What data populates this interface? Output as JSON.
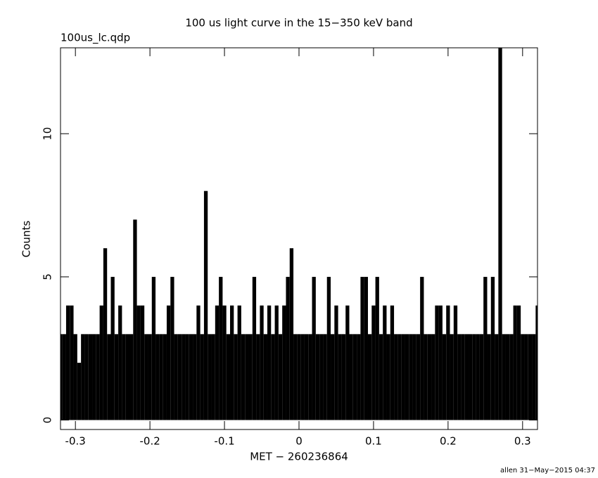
{
  "chart_data": {
    "type": "histogram-spikes",
    "title": "100 us light curve in the 15−350 keV band",
    "subtitle": "100us_lc.qdp",
    "x_label": "MET − 260236864",
    "y_label": "Counts",
    "footer": "allen 31−May−2015 04:37",
    "color": "#000000",
    "x": [
      -0.32,
      -0.315,
      -0.31,
      -0.305,
      -0.3,
      -0.295,
      -0.29,
      -0.285,
      -0.28,
      -0.275,
      -0.27,
      -0.265,
      -0.26,
      -0.255,
      -0.25,
      -0.245,
      -0.24,
      -0.235,
      -0.23,
      -0.225,
      -0.22,
      -0.215,
      -0.21,
      -0.205,
      -0.2,
      -0.195,
      -0.19,
      -0.185,
      -0.18,
      -0.175,
      -0.17,
      -0.165,
      -0.16,
      -0.155,
      -0.15,
      -0.145,
      -0.14,
      -0.135,
      -0.13,
      -0.125,
      -0.12,
      -0.115,
      -0.11,
      -0.105,
      -0.1,
      -0.095,
      -0.09,
      -0.085,
      -0.08,
      -0.075,
      -0.07,
      -0.065,
      -0.06,
      -0.055,
      -0.05,
      -0.045,
      -0.04,
      -0.035,
      -0.03,
      -0.025,
      -0.02,
      -0.015,
      -0.01,
      -0.005,
      0,
      0.005,
      0.01,
      0.015,
      0.02,
      0.025,
      0.03,
      0.035,
      0.04,
      0.045,
      0.05,
      0.055,
      0.06,
      0.065,
      0.07,
      0.075,
      0.08,
      0.085,
      0.09,
      0.095,
      0.1,
      0.105,
      0.11,
      0.115,
      0.12,
      0.125,
      0.13,
      0.135,
      0.14,
      0.145,
      0.15,
      0.155,
      0.16,
      0.165,
      0.17,
      0.175,
      0.18,
      0.185,
      0.19,
      0.195,
      0.2,
      0.205,
      0.21,
      0.215,
      0.22,
      0.225,
      0.23,
      0.235,
      0.24,
      0.245,
      0.25,
      0.255,
      0.26,
      0.265,
      0.27,
      0.275,
      0.28,
      0.285,
      0.29,
      0.295,
      0.3,
      0.305,
      0.31,
      0.315,
      0.32
    ],
    "values": [
      3,
      3,
      4,
      4,
      3,
      2,
      3,
      3,
      3,
      3,
      3,
      4,
      6,
      3,
      5,
      3,
      4,
      3,
      3,
      3,
      7,
      4,
      4,
      3,
      3,
      5,
      3,
      3,
      3,
      4,
      5,
      3,
      3,
      3,
      3,
      3,
      3,
      4,
      3,
      8,
      3,
      3,
      4,
      5,
      4,
      3,
      4,
      3,
      4,
      3,
      3,
      3,
      5,
      3,
      4,
      3,
      4,
      3,
      4,
      3,
      4,
      5,
      6,
      3,
      3,
      3,
      3,
      3,
      5,
      3,
      3,
      3,
      5,
      3,
      4,
      3,
      3,
      4,
      3,
      3,
      3,
      5,
      5,
      3,
      4,
      5,
      3,
      4,
      3,
      4,
      3,
      3,
      3,
      3,
      3,
      3,
      3,
      5,
      3,
      3,
      3,
      4,
      4,
      3,
      4,
      3,
      4,
      3,
      3,
      3,
      3,
      3,
      3,
      3,
      5,
      3,
      5,
      3,
      13,
      3,
      3,
      3,
      4,
      4,
      3,
      3,
      3,
      3,
      4
    ],
    "xlim": [
      -0.32,
      0.32
    ],
    "ylim": [
      -0.33,
      13.0
    ],
    "xticks": [
      -0.3,
      -0.2,
      -0.1,
      0,
      0.1,
      0.2,
      0.3
    ],
    "yticks": [
      0,
      5,
      10
    ]
  }
}
